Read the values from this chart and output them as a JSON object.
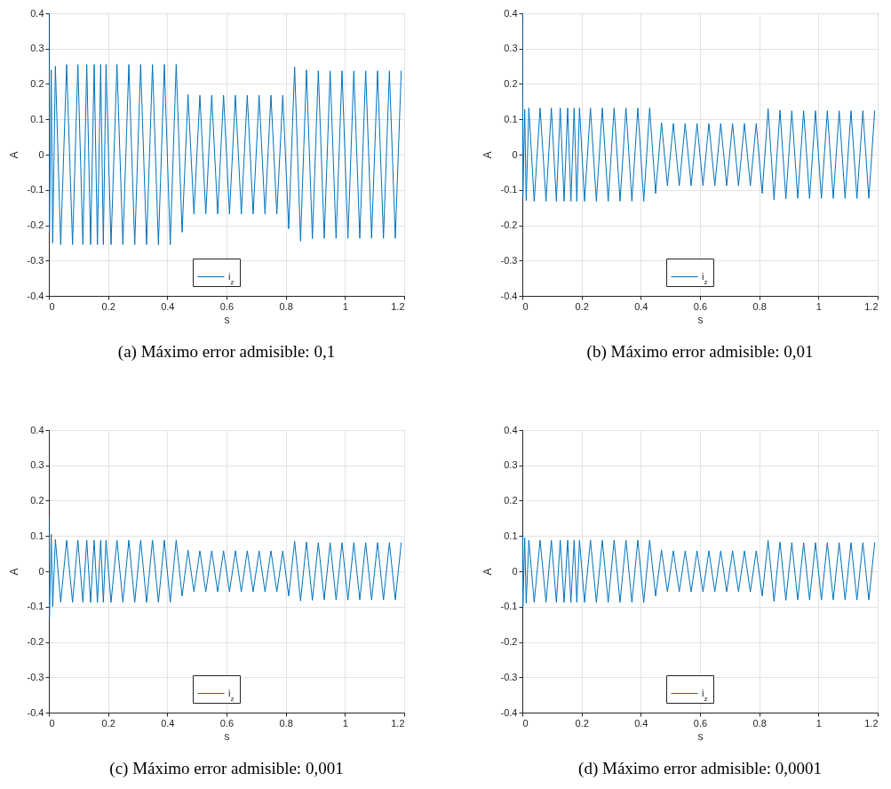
{
  "chart_data": [
    {
      "type": "line",
      "title": "(a) Máximo error admisible: 0,1",
      "xlabel": "s",
      "ylabel": "A",
      "xlim": [
        0,
        1.2
      ],
      "xticks": [
        0,
        0.2,
        0.4,
        0.6,
        0.8,
        1,
        1.2
      ],
      "ylim": [
        -0.4,
        0.4
      ],
      "yticks": [
        -0.4,
        -0.3,
        -0.2,
        -0.1,
        0,
        0.1,
        0.2,
        0.3,
        0.4
      ],
      "grid": true,
      "legend": "bottom",
      "x": [
        0,
        0.002,
        0.008,
        0.013,
        0.022,
        0.04,
        0.06,
        0.08,
        0.098,
        0.115,
        0.128,
        0.141,
        0.153,
        0.164,
        0.175,
        0.184,
        0.193,
        0.21,
        0.23,
        0.25,
        0.27,
        0.29,
        0.31,
        0.33,
        0.35,
        0.37,
        0.39,
        0.41,
        0.43,
        0.45,
        0.47,
        0.49,
        0.51,
        0.53,
        0.55,
        0.57,
        0.59,
        0.61,
        0.63,
        0.65,
        0.67,
        0.69,
        0.71,
        0.73,
        0.75,
        0.77,
        0.79,
        0.81,
        0.83,
        0.85,
        0.87,
        0.89,
        0.91,
        0.93,
        0.95,
        0.97,
        0.99,
        1.01,
        1.03,
        1.05,
        1.07,
        1.09,
        1.11,
        1.13,
        1.15,
        1.17,
        1.19
      ],
      "series": [
        {
          "name": "i$_{z}$",
          "color": "#0072bd",
          "values": [
            0.4,
            -0.22,
            0.24,
            -0.25,
            0.25,
            -0.255,
            0.255,
            -0.255,
            0.255,
            -0.255,
            0.255,
            -0.255,
            0.255,
            -0.255,
            0.255,
            -0.255,
            0.255,
            -0.255,
            0.255,
            -0.255,
            0.255,
            -0.255,
            0.255,
            -0.255,
            0.255,
            -0.255,
            0.255,
            -0.255,
            0.255,
            -0.22,
            0.17,
            -0.168,
            0.168,
            -0.168,
            0.168,
            -0.168,
            0.168,
            -0.168,
            0.168,
            -0.168,
            0.168,
            -0.168,
            0.168,
            -0.168,
            0.168,
            -0.168,
            0.168,
            -0.21,
            0.248,
            -0.245,
            0.24,
            -0.238,
            0.237,
            -0.237,
            0.237,
            -0.237,
            0.237,
            -0.237,
            0.237,
            -0.237,
            0.237,
            -0.237,
            0.237,
            -0.237,
            0.237,
            -0.237,
            0.237
          ]
        }
      ]
    },
    {
      "type": "line",
      "title": "(b) Máximo error admisible: 0,01",
      "xlabel": "s",
      "ylabel": "A",
      "xlim": [
        0,
        1.2
      ],
      "xticks": [
        0,
        0.2,
        0.4,
        0.6,
        0.8,
        1,
        1.2
      ],
      "ylim": [
        -0.4,
        0.4
      ],
      "yticks": [
        -0.4,
        -0.3,
        -0.2,
        -0.1,
        0,
        0.1,
        0.2,
        0.3,
        0.4
      ],
      "grid": true,
      "legend": "bottom",
      "x": [
        0,
        0.002,
        0.008,
        0.013,
        0.022,
        0.04,
        0.06,
        0.08,
        0.098,
        0.115,
        0.128,
        0.141,
        0.153,
        0.164,
        0.175,
        0.184,
        0.193,
        0.21,
        0.23,
        0.25,
        0.27,
        0.29,
        0.31,
        0.33,
        0.35,
        0.37,
        0.39,
        0.41,
        0.43,
        0.45,
        0.47,
        0.49,
        0.51,
        0.53,
        0.55,
        0.57,
        0.59,
        0.61,
        0.63,
        0.65,
        0.67,
        0.69,
        0.71,
        0.73,
        0.75,
        0.77,
        0.79,
        0.81,
        0.83,
        0.85,
        0.87,
        0.89,
        0.91,
        0.93,
        0.95,
        0.97,
        0.99,
        1.01,
        1.03,
        1.05,
        1.07,
        1.09,
        1.11,
        1.13,
        1.15,
        1.17,
        1.19
      ],
      "series": [
        {
          "name": "i$_{z}$",
          "color": "#0072bd",
          "values": [
            0.4,
            -0.12,
            0.128,
            -0.13,
            0.132,
            -0.132,
            0.132,
            -0.132,
            0.132,
            -0.132,
            0.132,
            -0.132,
            0.132,
            -0.132,
            0.132,
            -0.132,
            0.132,
            -0.132,
            0.132,
            -0.132,
            0.132,
            -0.132,
            0.132,
            -0.132,
            0.132,
            -0.132,
            0.132,
            -0.132,
            0.132,
            -0.11,
            0.09,
            -0.088,
            0.088,
            -0.088,
            0.088,
            -0.088,
            0.088,
            -0.088,
            0.088,
            -0.088,
            0.088,
            -0.088,
            0.088,
            -0.088,
            0.088,
            -0.088,
            0.088,
            -0.11,
            0.13,
            -0.128,
            0.126,
            -0.125,
            0.124,
            -0.124,
            0.124,
            -0.124,
            0.124,
            -0.124,
            0.124,
            -0.124,
            0.124,
            -0.124,
            0.124,
            -0.124,
            0.124,
            -0.124,
            0.124
          ]
        }
      ]
    },
    {
      "type": "line",
      "title": "(c) Máximo error admisible: 0,001",
      "xlabel": "s",
      "ylabel": "A",
      "xlim": [
        0,
        1.2
      ],
      "xticks": [
        0,
        0.2,
        0.4,
        0.6,
        0.8,
        1,
        1.2
      ],
      "ylim": [
        -0.4,
        0.4
      ],
      "yticks": [
        -0.4,
        -0.3,
        -0.2,
        -0.1,
        0,
        0.1,
        0.2,
        0.3,
        0.4
      ],
      "grid": true,
      "legend": "bottom",
      "x": [
        0,
        0.002,
        0.008,
        0.013,
        0.022,
        0.04,
        0.06,
        0.08,
        0.098,
        0.115,
        0.128,
        0.141,
        0.153,
        0.164,
        0.175,
        0.184,
        0.193,
        0.21,
        0.23,
        0.25,
        0.27,
        0.29,
        0.31,
        0.33,
        0.35,
        0.37,
        0.39,
        0.41,
        0.43,
        0.45,
        0.47,
        0.49,
        0.51,
        0.53,
        0.55,
        0.57,
        0.59,
        0.61,
        0.63,
        0.65,
        0.67,
        0.69,
        0.71,
        0.73,
        0.75,
        0.77,
        0.79,
        0.81,
        0.83,
        0.85,
        0.87,
        0.89,
        0.91,
        0.93,
        0.95,
        0.97,
        0.99,
        1.01,
        1.03,
        1.05,
        1.07,
        1.09,
        1.11,
        1.13,
        1.15,
        1.17,
        1.19
      ],
      "series": [
        {
          "name": "i$_{z}$",
          "color": "#0072bd",
          "values": [
            0.15,
            -0.13,
            0.105,
            -0.1,
            0.09,
            -0.088,
            0.088,
            -0.088,
            0.088,
            -0.088,
            0.088,
            -0.088,
            0.088,
            -0.088,
            0.088,
            -0.088,
            0.088,
            -0.088,
            0.088,
            -0.088,
            0.088,
            -0.088,
            0.088,
            -0.088,
            0.088,
            -0.088,
            0.088,
            -0.088,
            0.088,
            -0.07,
            0.06,
            -0.058,
            0.058,
            -0.058,
            0.058,
            -0.058,
            0.058,
            -0.058,
            0.058,
            -0.058,
            0.058,
            -0.058,
            0.058,
            -0.058,
            0.058,
            -0.058,
            0.058,
            -0.07,
            0.085,
            -0.084,
            0.083,
            -0.082,
            0.081,
            -0.081,
            0.081,
            -0.081,
            0.081,
            -0.081,
            0.081,
            -0.081,
            0.081,
            -0.081,
            0.081,
            -0.081,
            0.081,
            -0.081,
            0.081
          ]
        }
      ]
    },
    {
      "type": "line",
      "title": "(d) Máximo error admisible: 0,0001",
      "xlabel": "s",
      "ylabel": "A",
      "xlim": [
        0,
        1.2
      ],
      "xticks": [
        0,
        0.2,
        0.4,
        0.6,
        0.8,
        1,
        1.2
      ],
      "ylim": [
        -0.4,
        0.4
      ],
      "yticks": [
        -0.4,
        -0.3,
        -0.2,
        -0.1,
        0,
        0.1,
        0.2,
        0.3,
        0.4
      ],
      "grid": true,
      "legend": "bottom",
      "x": [
        0,
        0.002,
        0.008,
        0.013,
        0.022,
        0.04,
        0.06,
        0.08,
        0.098,
        0.115,
        0.128,
        0.141,
        0.153,
        0.164,
        0.175,
        0.184,
        0.193,
        0.21,
        0.23,
        0.25,
        0.27,
        0.29,
        0.31,
        0.33,
        0.35,
        0.37,
        0.39,
        0.41,
        0.43,
        0.45,
        0.47,
        0.49,
        0.51,
        0.53,
        0.55,
        0.57,
        0.59,
        0.61,
        0.63,
        0.65,
        0.67,
        0.69,
        0.71,
        0.73,
        0.75,
        0.77,
        0.79,
        0.81,
        0.83,
        0.85,
        0.87,
        0.89,
        0.91,
        0.93,
        0.95,
        0.97,
        0.99,
        1.01,
        1.03,
        1.05,
        1.07,
        1.09,
        1.11,
        1.13,
        1.15,
        1.17,
        1.19
      ],
      "series": [
        {
          "name": "i$_{z}$",
          "color": "#0072bd",
          "values": [
            0.1,
            -0.1,
            0.095,
            -0.09,
            0.088,
            -0.088,
            0.088,
            -0.088,
            0.088,
            -0.088,
            0.088,
            -0.088,
            0.088,
            -0.088,
            0.088,
            -0.088,
            0.088,
            -0.088,
            0.088,
            -0.088,
            0.088,
            -0.088,
            0.088,
            -0.088,
            0.088,
            -0.088,
            0.088,
            -0.088,
            0.088,
            -0.07,
            0.06,
            -0.058,
            0.058,
            -0.058,
            0.058,
            -0.058,
            0.058,
            -0.058,
            0.058,
            -0.058,
            0.058,
            -0.058,
            0.058,
            -0.058,
            0.058,
            -0.058,
            0.058,
            -0.07,
            0.087,
            -0.085,
            0.083,
            -0.082,
            0.081,
            -0.081,
            0.081,
            -0.081,
            0.081,
            -0.081,
            0.081,
            -0.081,
            0.081,
            -0.081,
            0.081,
            -0.081,
            0.081,
            -0.081,
            0.081
          ]
        }
      ]
    }
  ]
}
